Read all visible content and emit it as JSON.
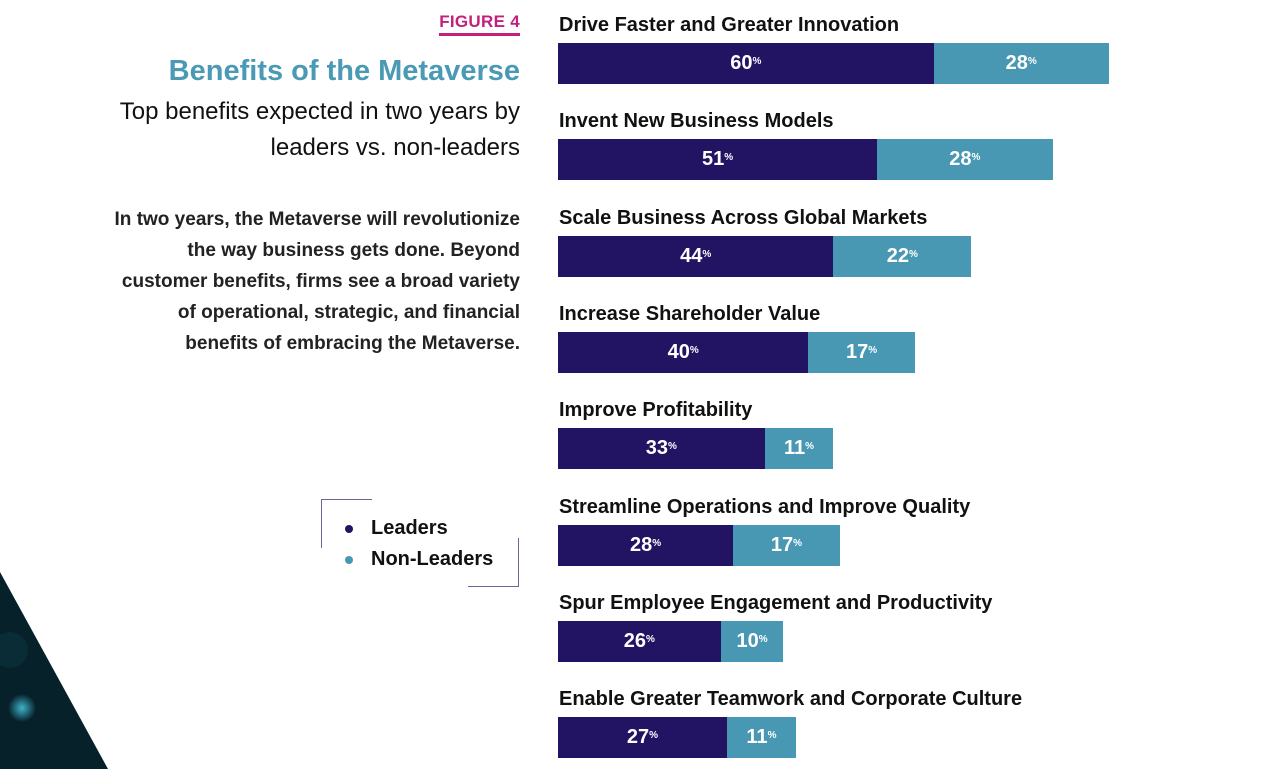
{
  "figure_label": "FIGURE 4",
  "title": "Benefits of the Metaverse",
  "subtitle": "Top benefits expected in two years by leaders vs. non-leaders",
  "description": "In two years, the Metaverse will revolutionize the way business gets done. Beyond customer benefits, firms see a broad variety of operational, strategic, and financial benefits of embracing the Metaverse.",
  "colors": {
    "leaders": "#231463",
    "non_leaders": "#4898b4",
    "title": "#4a9ab5",
    "figure_label": "#c2207a"
  },
  "chart_data": {
    "type": "bar",
    "orientation": "horizontal-stacked",
    "unit": "%",
    "legend_placement": "left",
    "categories": [
      "Drive Faster and Greater Innovation",
      "Invent New Business Models",
      "Scale Business Across Global Markets",
      "Increase Shareholder Value",
      "Improve Profitability",
      "Streamline Operations and Improve Quality",
      "Spur Employee Engagement and Productivity",
      "Enable Greater Teamwork and Corporate Culture"
    ],
    "series": [
      {
        "name": "Leaders",
        "values": [
          60,
          51,
          44,
          40,
          33,
          28,
          26,
          27
        ]
      },
      {
        "name": "Non-Leaders",
        "values": [
          28,
          28,
          22,
          17,
          11,
          17,
          10,
          11
        ]
      }
    ]
  }
}
